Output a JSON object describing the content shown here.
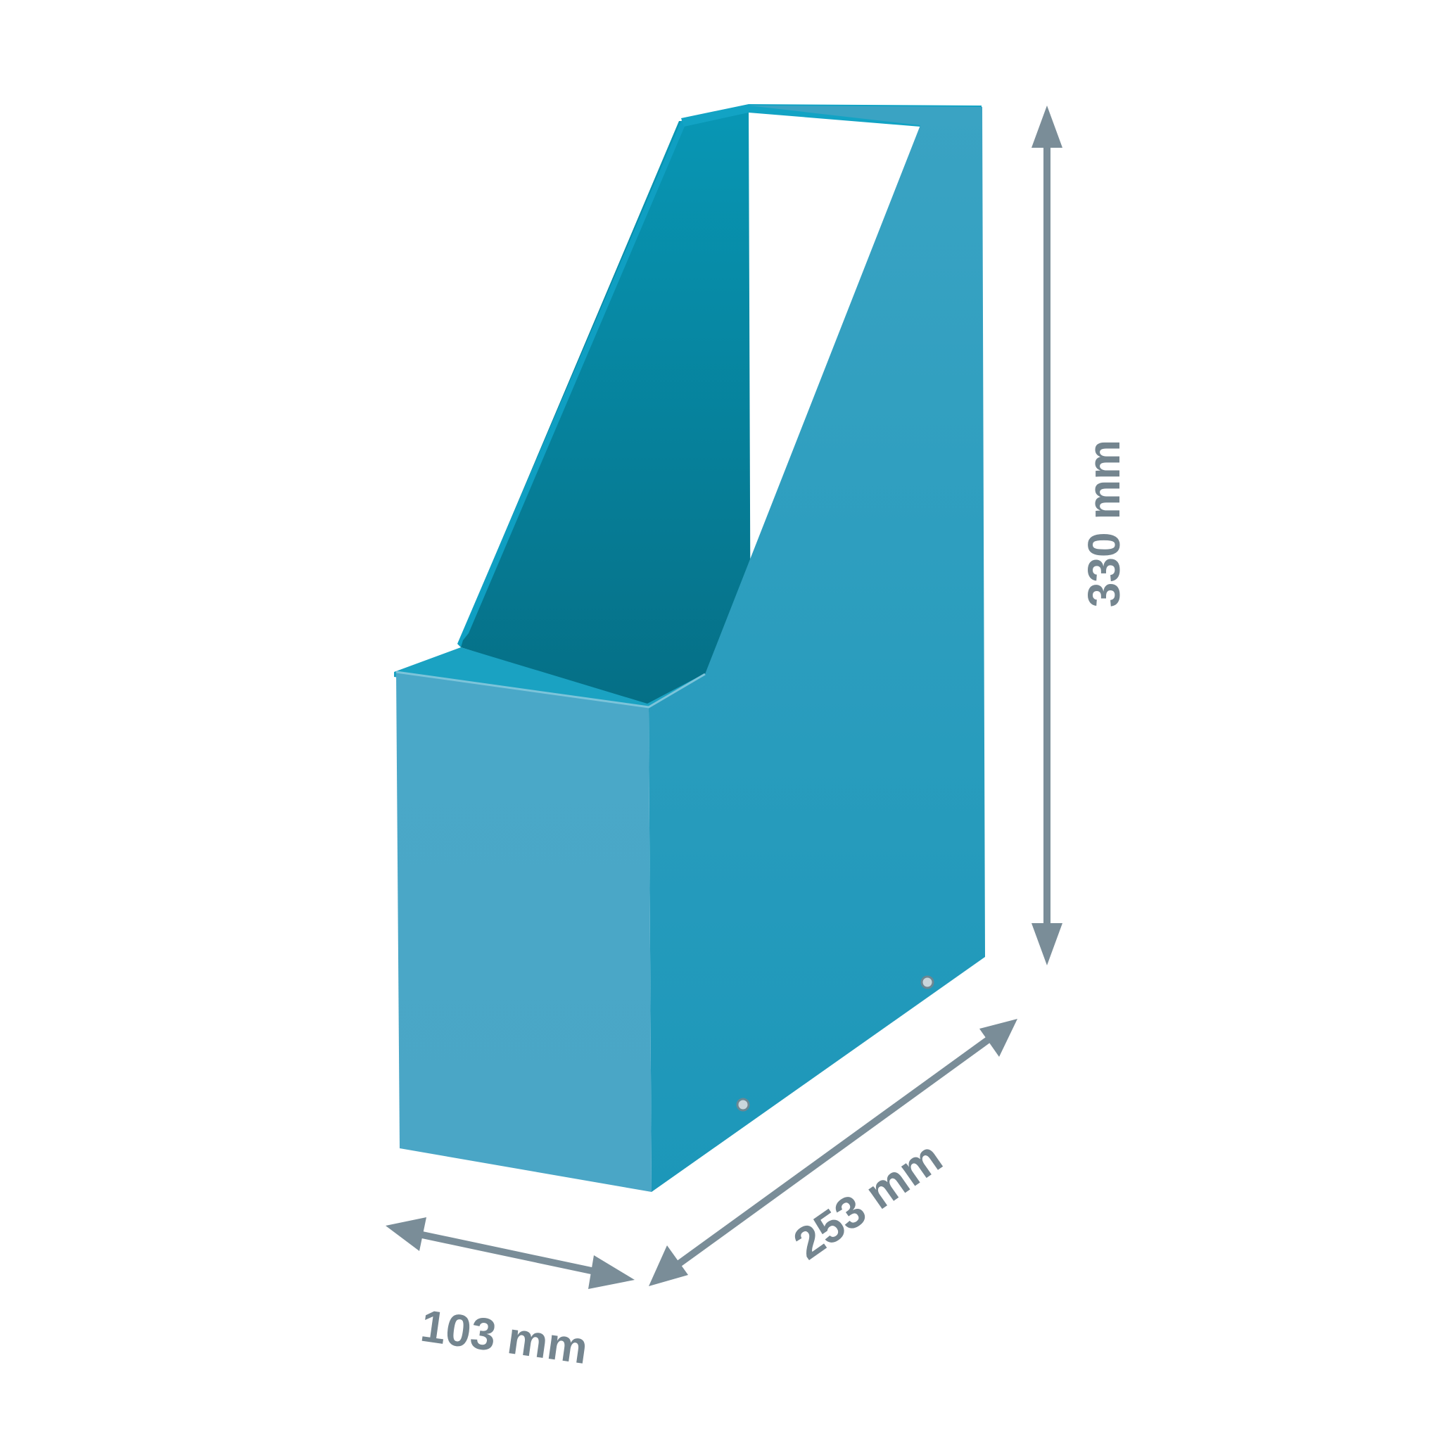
{
  "dimensions": {
    "height": "330 mm",
    "depth": "253 mm",
    "width": "103 mm"
  },
  "colors": {
    "background": "#ffffff",
    "arrow": "#7a8d98",
    "label": "#74858f",
    "box_front": "#4aa7c7",
    "box_side": "#239fc0",
    "box_interior": "#07829e",
    "box_rim": "#0e9bbd"
  }
}
